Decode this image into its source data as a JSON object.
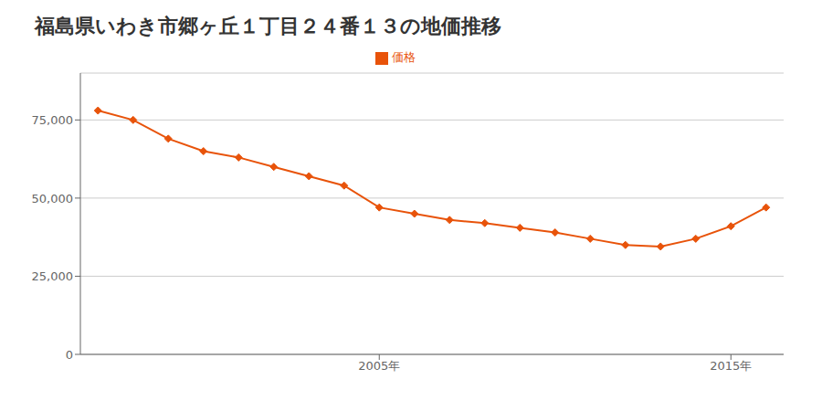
{
  "chart_data": {
    "type": "line",
    "title": "福島県いわき市郷ヶ丘１丁目２４番１３の地価推移",
    "x": [
      1997,
      1998,
      1999,
      2000,
      2001,
      2002,
      2003,
      2004,
      2005,
      2006,
      2007,
      2008,
      2009,
      2010,
      2011,
      2012,
      2013,
      2014,
      2015,
      2016
    ],
    "series": [
      {
        "name": "価格",
        "color": "#e8530a",
        "marker": "diamond",
        "values": [
          78000,
          75000,
          69000,
          65000,
          63000,
          60000,
          57000,
          54000,
          47000,
          45000,
          43000,
          42000,
          40500,
          39000,
          37000,
          35000,
          34500,
          37000,
          41000,
          47000
        ]
      }
    ],
    "xlim": [
      1996.5,
      2016.5
    ],
    "xticks": [
      {
        "value": 2005,
        "label": "2005年"
      },
      {
        "value": 2015,
        "label": "2015年"
      }
    ],
    "ylim": [
      0,
      90000
    ],
    "yticks": [
      0,
      {
        "value": 25000,
        "label": "25,000"
      },
      {
        "value": 50000,
        "label": "50,000"
      },
      {
        "value": 75000,
        "label": "75,000"
      }
    ],
    "grid": "y",
    "legend": "top"
  }
}
